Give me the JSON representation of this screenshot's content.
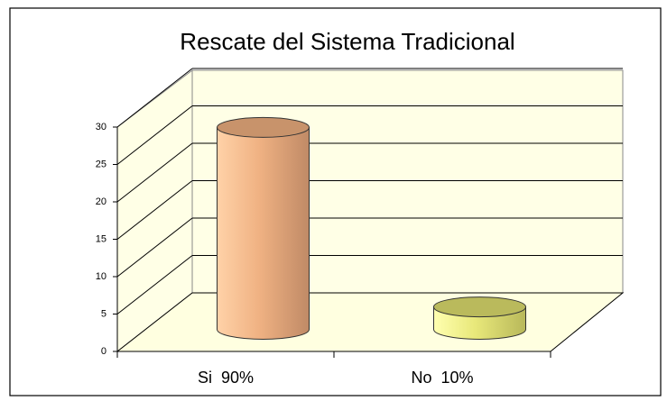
{
  "chart_data": {
    "type": "bar",
    "title": "Rescate del Sistema Tradicional",
    "categories": [
      "Si  90%",
      "No  10%"
    ],
    "values": [
      27,
      3
    ],
    "colors": [
      "#f0b283",
      "#e8e87a"
    ],
    "ylim": [
      0,
      30
    ],
    "yticks": [
      0,
      5,
      10,
      15,
      20,
      25,
      30
    ],
    "grid": true
  }
}
